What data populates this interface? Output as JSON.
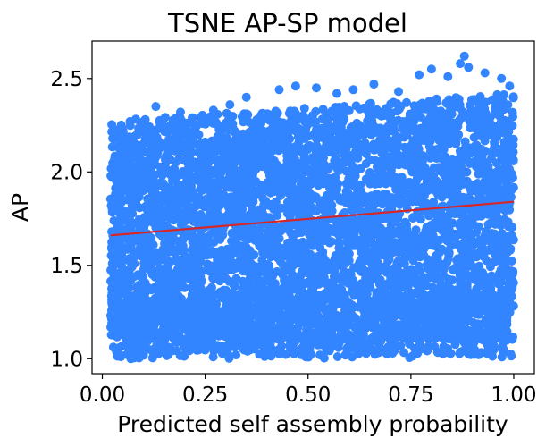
{
  "chart_data": {
    "type": "scatter",
    "title": "TSNE AP-SP model",
    "xlabel": "Predicted self assembly probability",
    "ylabel": "AP",
    "xlim": [
      -0.025,
      1.05
    ],
    "ylim": [
      0.92,
      2.7
    ],
    "xticks": [
      0.0,
      0.25,
      0.5,
      0.75,
      1.0
    ],
    "xtick_labels": [
      "0.00",
      "0.25",
      "0.50",
      "0.75",
      "1.00"
    ],
    "yticks": [
      1.0,
      1.5,
      2.0,
      2.5
    ],
    "ytick_labels": [
      "1.0",
      "1.5",
      "2.0",
      "2.5"
    ],
    "grid": false,
    "legend": "none",
    "series": [
      {
        "kind": "points",
        "color": "#3385ff",
        "note_density": "dense cloud spanning x 0.02–1.00, y ~1.0–2.6",
        "cloud": {
          "x_range": [
            0.02,
            1.0
          ],
          "y_core": [
            1.05,
            2.3
          ],
          "y_min": 1.0,
          "y_max": 2.62
        },
        "outliers": [
          [
            0.13,
            2.35
          ],
          [
            0.19,
            2.32
          ],
          [
            0.22,
            2.29
          ],
          [
            0.27,
            2.33
          ],
          [
            0.31,
            2.36
          ],
          [
            0.35,
            2.4
          ],
          [
            0.43,
            2.44
          ],
          [
            0.47,
            2.46
          ],
          [
            0.52,
            2.45
          ],
          [
            0.57,
            2.42
          ],
          [
            0.61,
            2.44
          ],
          [
            0.66,
            2.47
          ],
          [
            0.72,
            2.43
          ],
          [
            0.77,
            2.52
          ],
          [
            0.8,
            2.55
          ],
          [
            0.84,
            2.51
          ],
          [
            0.87,
            2.58
          ],
          [
            0.89,
            2.56
          ],
          [
            0.93,
            2.53
          ],
          [
            0.97,
            2.5
          ],
          [
            0.99,
            2.46
          ],
          [
            0.88,
            2.62
          ]
        ]
      },
      {
        "kind": "trend-line",
        "color": "#d62728",
        "x": [
          0.02,
          1.0
        ],
        "y": [
          1.66,
          1.84
        ]
      }
    ]
  }
}
